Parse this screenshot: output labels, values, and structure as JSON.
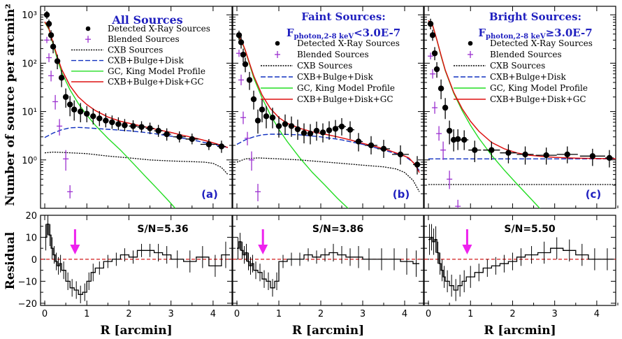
{
  "figure": {
    "ylabel_top": "Number of source per arcmin²",
    "ylabel_bottom": "Residual",
    "xlabel": "R [arcmin]",
    "x_ticks": [
      0,
      1,
      2,
      3,
      4
    ],
    "top_y_ticks": [
      "10⁰",
      "10¹",
      "10²",
      "10³"
    ],
    "bottom_y_ticks": [
      -20,
      -10,
      0,
      10,
      20
    ]
  },
  "colors": {
    "title": "#1f1fbf",
    "panel_tag": "#1f1fbf",
    "blended": "#9b30d0",
    "cxb": "#000000",
    "cxb_bulge_disk": "#1030c0",
    "gc_king": "#22dd22",
    "total": "#dd1111",
    "arrow": "#ee22ee",
    "zero_line": "#cc0000"
  },
  "chart_data": [
    {
      "type": "scatter",
      "panel": "a",
      "title_lines": [
        "All Sources"
      ],
      "tag": "(a)",
      "snr": "S/N=5.36",
      "legend": [
        "Detected X-Ray Sources",
        "Blended Sources",
        "CXB Sources",
        "CXB+Bulge+Disk",
        "GC, King Model Profile",
        "CXB+Bulge+Disk+GC"
      ],
      "xlim": [
        -0.1,
        4.45
      ],
      "ylim_top": [
        0.1,
        1500
      ],
      "ylim_bottom": [
        -21,
        20
      ],
      "arrow_x": 0.72,
      "detected": {
        "x": [
          0.05,
          0.1,
          0.15,
          0.2,
          0.3,
          0.4,
          0.5,
          0.6,
          0.7,
          0.85,
          1.0,
          1.15,
          1.3,
          1.45,
          1.6,
          1.75,
          1.9,
          2.1,
          2.3,
          2.5,
          2.7,
          2.9,
          3.2,
          3.5,
          3.9,
          4.2
        ],
        "y": [
          1000,
          650,
          380,
          220,
          110,
          50,
          20,
          14,
          11,
          10,
          9,
          8,
          7.2,
          6.5,
          6.0,
          5.5,
          5.2,
          5.0,
          4.8,
          4.5,
          4.0,
          3.4,
          3.0,
          2.7,
          2.1,
          1.9
        ],
        "err_lo": [
          820,
          520,
          290,
          160,
          75,
          32,
          12,
          8,
          6.5,
          6,
          6,
          5.4,
          5.0,
          4.7,
          4.4,
          4.1,
          3.9,
          3.8,
          3.7,
          3.4,
          3.0,
          2.5,
          2.3,
          2.1,
          1.6,
          1.4
        ],
        "err_hi": [
          1200,
          800,
          480,
          290,
          150,
          72,
          30,
          21,
          17,
          15,
          13,
          11.5,
          10.2,
          9.2,
          8.3,
          7.6,
          7.0,
          6.6,
          6.3,
          5.9,
          5.3,
          4.5,
          3.9,
          3.5,
          2.7,
          2.5
        ],
        "x_err": [
          0.03,
          0.03,
          0.03,
          0.03,
          0.05,
          0.05,
          0.05,
          0.05,
          0.05,
          0.07,
          0.07,
          0.07,
          0.07,
          0.07,
          0.07,
          0.07,
          0.07,
          0.1,
          0.1,
          0.1,
          0.1,
          0.1,
          0.15,
          0.15,
          0.2,
          0.1
        ]
      },
      "blended": {
        "x": [
          0.05,
          0.1,
          0.15,
          0.25,
          0.35,
          0.5,
          0.6
        ],
        "y": [
          300,
          130,
          55,
          16,
          5,
          1.05,
          0.22
        ],
        "err_lo": [
          260,
          105,
          42,
          11,
          3.2,
          0.6,
          0.16
        ],
        "err_hi": [
          350,
          160,
          70,
          22,
          7,
          1.6,
          0.3
        ]
      },
      "cxb": {
        "x": [
          0,
          0.2,
          0.5,
          1.0,
          1.5,
          2.0,
          2.5,
          3.0,
          3.5,
          3.8,
          4.0,
          4.2,
          4.35
        ],
        "y": [
          1.4,
          1.45,
          1.42,
          1.35,
          1.2,
          1.1,
          1.0,
          0.95,
          0.92,
          0.9,
          0.85,
          0.7,
          0.5
        ]
      },
      "cxb_bulge_disk": {
        "x": [
          0,
          0.2,
          0.4,
          0.6,
          0.8,
          1.0,
          1.5,
          2.0,
          2.5,
          3.0,
          3.5,
          4.0,
          4.35
        ],
        "y": [
          2.9,
          3.6,
          4.2,
          4.6,
          4.7,
          4.6,
          4.3,
          4.0,
          3.6,
          3.1,
          2.6,
          2.1,
          1.8
        ]
      },
      "gc_king": {
        "x": [
          0,
          0.1,
          0.2,
          0.3,
          0.4,
          0.6,
          0.8,
          1.0,
          1.2,
          1.5,
          1.8,
          2.1,
          2.4,
          2.7,
          2.95,
          3.1
        ],
        "y": [
          700,
          500,
          240,
          120,
          65,
          28,
          14.5,
          8.5,
          5.2,
          2.8,
          1.6,
          0.85,
          0.45,
          0.24,
          0.14,
          0.1
        ]
      },
      "total": {
        "x": [
          0,
          0.1,
          0.2,
          0.3,
          0.4,
          0.6,
          0.8,
          1.0,
          1.2,
          1.5,
          1.8,
          2.1,
          2.4,
          2.7,
          3.0,
          3.3,
          3.6,
          3.9,
          4.2,
          4.35
        ],
        "y": [
          720,
          520,
          260,
          135,
          75,
          34,
          20,
          14,
          10.5,
          7.7,
          6.3,
          5.5,
          4.8,
          4.2,
          3.7,
          3.2,
          2.8,
          2.4,
          2.0,
          1.8
        ]
      },
      "residual": {
        "edges": [
          0.0,
          0.05,
          0.1,
          0.15,
          0.2,
          0.25,
          0.3,
          0.35,
          0.4,
          0.5,
          0.6,
          0.7,
          0.8,
          0.9,
          1.0,
          1.1,
          1.2,
          1.4,
          1.6,
          1.8,
          2.0,
          2.2,
          2.4,
          2.6,
          2.8,
          3.0,
          3.3,
          3.6,
          3.9,
          4.2,
          4.4
        ],
        "values": [
          10,
          16,
          11,
          5,
          2,
          -1,
          -3,
          -2,
          -5,
          -10,
          -13,
          -14,
          -16,
          -15,
          -10,
          -6,
          -4,
          -1,
          0,
          2,
          1,
          4,
          4,
          3,
          2,
          0,
          -1,
          1,
          -3,
          2
        ],
        "err": [
          6,
          5,
          5,
          5,
          4,
          4,
          4,
          4,
          4,
          4,
          4,
          4,
          4,
          4,
          4,
          4,
          3,
          3,
          3,
          3,
          3,
          3,
          3,
          4,
          4,
          4,
          5,
          5,
          5,
          6
        ]
      }
    },
    {
      "type": "scatter",
      "panel": "b",
      "title_lines": [
        "Faint Sources:",
        "F_photon,2-8 keV<3.0E-7"
      ],
      "tag": "(b)",
      "snr": "S/N=3.86",
      "legend": [
        "Detected X-Ray Sources",
        "Blended Sources",
        "CXB Sources",
        "CXB+Bulge+Disk",
        "GC, King Model Profile",
        "CXB+Bulge+Disk+GC"
      ],
      "xlim": [
        -0.1,
        4.45
      ],
      "ylim_top": [
        0.1,
        1500
      ],
      "ylim_bottom": [
        -21,
        20
      ],
      "arrow_x": 0.62,
      "detected": {
        "x": [
          0.05,
          0.1,
          0.15,
          0.2,
          0.3,
          0.4,
          0.5,
          0.6,
          0.7,
          0.85,
          1.0,
          1.15,
          1.3,
          1.45,
          1.6,
          1.75,
          1.9,
          2.05,
          2.2,
          2.35,
          2.5,
          2.7,
          2.9,
          3.2,
          3.5,
          3.9,
          4.3
        ],
        "y": [
          380,
          270,
          150,
          95,
          45,
          18,
          6.5,
          11,
          8,
          7.5,
          5,
          5.5,
          5,
          4.3,
          3.6,
          3.5,
          4,
          3.7,
          4.1,
          4.4,
          4.9,
          4.2,
          2.4,
          2.0,
          1.7,
          1.3,
          0.8
        ],
        "err_lo": [
          300,
          200,
          105,
          65,
          28,
          11,
          3.5,
          6,
          4.5,
          4.5,
          2.9,
          3.3,
          3.0,
          2.6,
          2.2,
          2.1,
          2.5,
          2.3,
          2.6,
          2.8,
          3.2,
          2.7,
          1.5,
          1.3,
          1.1,
          0.8,
          0.5
        ],
        "err_hi": [
          470,
          350,
          200,
          130,
          66,
          27,
          11,
          18,
          13,
          12,
          8,
          8.7,
          7.9,
          6.8,
          5.7,
          5.5,
          6.2,
          5.7,
          6.3,
          6.7,
          7.3,
          6.3,
          3.6,
          3.1,
          2.6,
          2.0,
          1.2
        ],
        "x_err": [
          0.03,
          0.03,
          0.03,
          0.03,
          0.05,
          0.05,
          0.05,
          0.05,
          0.05,
          0.07,
          0.07,
          0.07,
          0.07,
          0.07,
          0.07,
          0.07,
          0.07,
          0.07,
          0.07,
          0.07,
          0.1,
          0.1,
          0.1,
          0.15,
          0.15,
          0.2,
          0.1
        ]
      },
      "blended": {
        "x": [
          0.05,
          0.1,
          0.15,
          0.25,
          0.35,
          0.5
        ],
        "y": [
          160,
          45,
          7.5,
          2.8,
          1.0,
          0.22
        ],
        "err_lo": [
          135,
          35,
          5.5,
          2.0,
          0.6,
          0.14
        ],
        "err_hi": [
          190,
          58,
          10,
          3.8,
          1.5,
          0.32
        ]
      },
      "cxb": {
        "x": [
          0,
          0.2,
          0.5,
          1.0,
          1.5,
          2.0,
          2.5,
          3.0,
          3.5,
          3.8,
          4.0,
          4.2,
          4.35
        ],
        "y": [
          0.9,
          1.05,
          1.1,
          1.05,
          1.0,
          0.92,
          0.85,
          0.78,
          0.72,
          0.65,
          0.55,
          0.38,
          0.22
        ]
      },
      "cxb_bulge_disk": {
        "x": [
          0,
          0.2,
          0.4,
          0.6,
          0.8,
          1.0,
          1.5,
          2.0,
          2.5,
          3.0,
          3.5,
          4.0,
          4.2,
          4.35
        ],
        "y": [
          2.1,
          2.6,
          3.0,
          3.3,
          3.4,
          3.4,
          3.3,
          3.0,
          2.6,
          2.1,
          1.6,
          1.2,
          0.9,
          0.6
        ]
      },
      "gc_king": {
        "x": [
          0,
          0.1,
          0.2,
          0.3,
          0.4,
          0.6,
          0.8,
          1.0,
          1.2,
          1.5,
          1.8,
          2.1,
          2.4,
          2.65,
          2.8
        ],
        "y": [
          360,
          300,
          180,
          95,
          50,
          19,
          8.5,
          4.3,
          2.4,
          1.1,
          0.55,
          0.3,
          0.16,
          0.1,
          0.08
        ]
      },
      "total": {
        "x": [
          0,
          0.1,
          0.2,
          0.3,
          0.4,
          0.6,
          0.8,
          1.0,
          1.2,
          1.5,
          1.8,
          2.1,
          2.4,
          2.7,
          3.0,
          3.3,
          3.6,
          3.9,
          4.1,
          4.25,
          4.35
        ],
        "y": [
          370,
          310,
          185,
          100,
          55,
          22,
          11.5,
          7.5,
          5.7,
          4.5,
          3.8,
          3.4,
          3.0,
          2.6,
          2.2,
          1.9,
          1.6,
          1.3,
          1.1,
          0.8,
          0.55
        ]
      },
      "residual": {
        "edges": [
          0.0,
          0.05,
          0.1,
          0.15,
          0.2,
          0.25,
          0.3,
          0.35,
          0.4,
          0.5,
          0.6,
          0.7,
          0.8,
          0.9,
          1.0,
          1.2,
          1.4,
          1.6,
          1.8,
          2.0,
          2.2,
          2.4,
          2.6,
          2.8,
          3.0,
          3.3,
          3.6,
          3.9,
          4.2,
          4.35
        ],
        "values": [
          5,
          8,
          4,
          2,
          3,
          -1,
          -3,
          -2,
          -5,
          -6,
          -9,
          -10,
          -13,
          -10,
          -1,
          0,
          0,
          2,
          1,
          2,
          3,
          2,
          1,
          1,
          0,
          0,
          0,
          -1,
          -2
        ],
        "err": [
          5,
          4,
          4,
          4,
          4,
          4,
          4,
          4,
          4,
          4,
          4,
          4,
          4,
          4,
          3,
          3,
          3,
          3,
          3,
          3,
          4,
          4,
          4,
          5,
          5,
          5,
          5,
          6,
          6
        ]
      }
    },
    {
      "type": "scatter",
      "panel": "c",
      "title_lines": [
        "Bright Sources:",
        "F_photon,2-8 keV≥3.0E-7"
      ],
      "tag": "(c)",
      "snr": "S/N=5.50",
      "legend": [
        "Detected X-Ray Sources",
        "Blended Sources",
        "CXB Sources",
        "CXB+Bulge+Disk",
        "GC, King Model Profile",
        "CXB+Bulge+Disk+GC"
      ],
      "xlim": [
        -0.1,
        4.45
      ],
      "ylim_top": [
        0.1,
        1500
      ],
      "ylim_bottom": [
        -21,
        20
      ],
      "arrow_x": 0.92,
      "detected": {
        "x": [
          0.05,
          0.1,
          0.15,
          0.2,
          0.3,
          0.4,
          0.5,
          0.6,
          0.7,
          0.85,
          1.1,
          1.5,
          1.9,
          2.3,
          2.8,
          3.3,
          3.9,
          4.3
        ],
        "y": [
          650,
          380,
          160,
          75,
          30,
          12,
          4,
          2.6,
          2.7,
          2.6,
          1.6,
          1.6,
          1.4,
          1.3,
          1.25,
          1.3,
          1.2,
          1.1
        ],
        "err_lo": [
          500,
          290,
          115,
          50,
          18,
          7,
          2.1,
          1.5,
          1.6,
          1.6,
          0.9,
          1.0,
          0.85,
          0.8,
          0.8,
          0.85,
          0.75,
          0.7
        ],
        "err_hi": [
          830,
          490,
          215,
          105,
          46,
          19,
          6.5,
          4.3,
          4.3,
          4.1,
          2.5,
          2.4,
          2.1,
          1.9,
          1.8,
          1.9,
          1.7,
          1.6
        ],
        "x_err": [
          0.03,
          0.03,
          0.03,
          0.03,
          0.05,
          0.05,
          0.05,
          0.05,
          0.05,
          0.1,
          0.15,
          0.2,
          0.2,
          0.2,
          0.25,
          0.25,
          0.3,
          0.1
        ]
      },
      "blended": {
        "x": [
          0.05,
          0.1,
          0.15,
          0.25,
          0.35,
          0.5,
          0.7
        ],
        "y": [
          140,
          60,
          12,
          3.5,
          1.6,
          0.4,
          0.11
        ],
        "err_lo": [
          120,
          48,
          9,
          2.5,
          1.0,
          0.25,
          0.08
        ],
        "err_hi": [
          165,
          75,
          16,
          5,
          2.4,
          0.6,
          0.15
        ]
      },
      "cxb": {
        "x": [
          0,
          1.0,
          2.0,
          3.0,
          4.0,
          4.45
        ],
        "y": [
          0.31,
          0.31,
          0.31,
          0.31,
          0.31,
          0.31
        ]
      },
      "cxb_bulge_disk": {
        "x": [
          0,
          1.0,
          2.0,
          3.0,
          4.0,
          4.45
        ],
        "y": [
          1.05,
          1.05,
          1.05,
          1.05,
          1.05,
          1.05
        ]
      },
      "gc_king": {
        "x": [
          0,
          0.1,
          0.2,
          0.3,
          0.4,
          0.6,
          0.8,
          1.0,
          1.2,
          1.5,
          1.8,
          2.1,
          2.4,
          2.6,
          2.75
        ],
        "y": [
          750,
          600,
          300,
          140,
          70,
          24,
          10.5,
          5.2,
          2.8,
          1.25,
          0.62,
          0.32,
          0.17,
          0.11,
          0.08
        ]
      },
      "total": {
        "x": [
          0,
          0.1,
          0.2,
          0.3,
          0.4,
          0.6,
          0.8,
          1.0,
          1.2,
          1.5,
          1.8,
          2.1,
          2.4,
          2.7,
          3.0,
          3.5,
          4.0,
          4.45
        ],
        "y": [
          760,
          610,
          305,
          145,
          72,
          25,
          11.5,
          6.3,
          3.9,
          2.3,
          1.7,
          1.4,
          1.25,
          1.18,
          1.13,
          1.09,
          1.07,
          1.06
        ]
      },
      "residual": {
        "edges": [
          0.0,
          0.05,
          0.1,
          0.15,
          0.2,
          0.25,
          0.3,
          0.35,
          0.4,
          0.5,
          0.6,
          0.7,
          0.8,
          0.9,
          1.1,
          1.3,
          1.5,
          1.7,
          1.9,
          2.1,
          2.3,
          2.6,
          2.9,
          3.2,
          3.5,
          3.8,
          4.1,
          4.4
        ],
        "values": [
          9,
          10,
          8,
          9,
          3,
          -2,
          -5,
          -8,
          -10,
          -12,
          -14,
          -12,
          -10,
          -8,
          -6,
          -4,
          -3,
          -2,
          -1,
          1,
          2,
          3,
          5,
          4,
          2,
          0,
          0
        ],
        "err": [
          7,
          6,
          6,
          6,
          5,
          5,
          5,
          5,
          5,
          5,
          5,
          5,
          5,
          5,
          4,
          4,
          4,
          4,
          4,
          4,
          4,
          5,
          5,
          5,
          5,
          5,
          5
        ]
      }
    }
  ]
}
